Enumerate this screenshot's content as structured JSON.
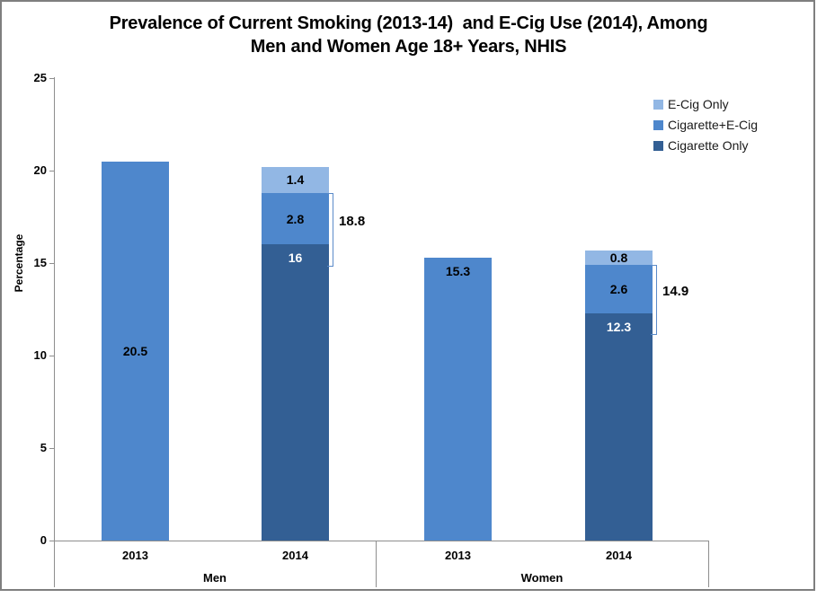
{
  "title": {
    "line1": "Prevalence of Current Smoking (2013-14)  and E-Cig Use (2014), Among",
    "line2": "Men and Women Age 18+ Years, NHIS"
  },
  "y_axis": {
    "title": "Percentage"
  },
  "legend": {
    "items": [
      {
        "label": "E-Cig Only",
        "color_key": "light"
      },
      {
        "label": "Cigarette+E-Cig",
        "color_key": "medium"
      },
      {
        "label": "Cigarette Only",
        "color_key": "dark"
      }
    ]
  },
  "colors": {
    "light": "#92B7E4",
    "medium": "#4E87CC",
    "dark": "#335F94",
    "bracket": "#5B8BC9",
    "axis": "#8E8E8E",
    "frame": "#7F7F7F",
    "label_dark_text": "#000000",
    "label_light_text": "#FFFFFF"
  },
  "chart_data": {
    "type": "bar",
    "stacked": true,
    "title": "Prevalence of Current Smoking (2013-14) and E-Cig Use (2014), Among Men and Women Age 18+ Years, NHIS",
    "ylabel": "Percentage",
    "ylim": [
      0,
      25
    ],
    "yticks": [
      0,
      5,
      10,
      15,
      20,
      25
    ],
    "grid": false,
    "legend_position": "top-right",
    "legend_entries": [
      "E-Cig Only",
      "Cigarette+E-Cig",
      "Cigarette Only"
    ],
    "group_labels": [
      "Men",
      "Women"
    ],
    "bars": [
      {
        "group": "Men",
        "category": "2013",
        "segments": [
          {
            "series": "Current Smoking",
            "value": 20.5,
            "label": "20.5",
            "color": "medium",
            "text": "black",
            "label_align": "center"
          }
        ]
      },
      {
        "group": "Men",
        "category": "2014",
        "segments": [
          {
            "series": "Cigarette Only",
            "value": 16,
            "label": "16",
            "color": "dark",
            "text": "white",
            "label_align": "top"
          },
          {
            "series": "Cigarette+E-Cig",
            "value": 2.8,
            "label": "2.8",
            "color": "medium",
            "text": "black",
            "label_align": "center"
          },
          {
            "series": "E-Cig Only",
            "value": 1.4,
            "label": "1.4",
            "color": "light",
            "text": "black",
            "label_align": "center"
          }
        ],
        "bracket": {
          "label": "18.8",
          "top_value": 18.8,
          "bottom_value": 14.8
        }
      },
      {
        "group": "Women",
        "category": "2013",
        "segments": [
          {
            "series": "Current Smoking",
            "value": 15.3,
            "label": "15.3",
            "color": "medium",
            "text": "black",
            "label_align": "top"
          }
        ]
      },
      {
        "group": "Women",
        "category": "2014",
        "segments": [
          {
            "series": "Cigarette Only",
            "value": 12.3,
            "label": "12.3",
            "color": "dark",
            "text": "white",
            "label_align": "top"
          },
          {
            "series": "Cigarette+E-Cig",
            "value": 2.6,
            "label": "2.6",
            "color": "medium",
            "text": "black",
            "label_align": "center"
          },
          {
            "series": "E-Cig Only",
            "value": 0.8,
            "label": "0.8",
            "color": "light",
            "text": "black",
            "label_align": "center"
          }
        ],
        "bracket": {
          "label": "14.9",
          "top_value": 14.9,
          "bottom_value": 11.1
        }
      }
    ]
  }
}
